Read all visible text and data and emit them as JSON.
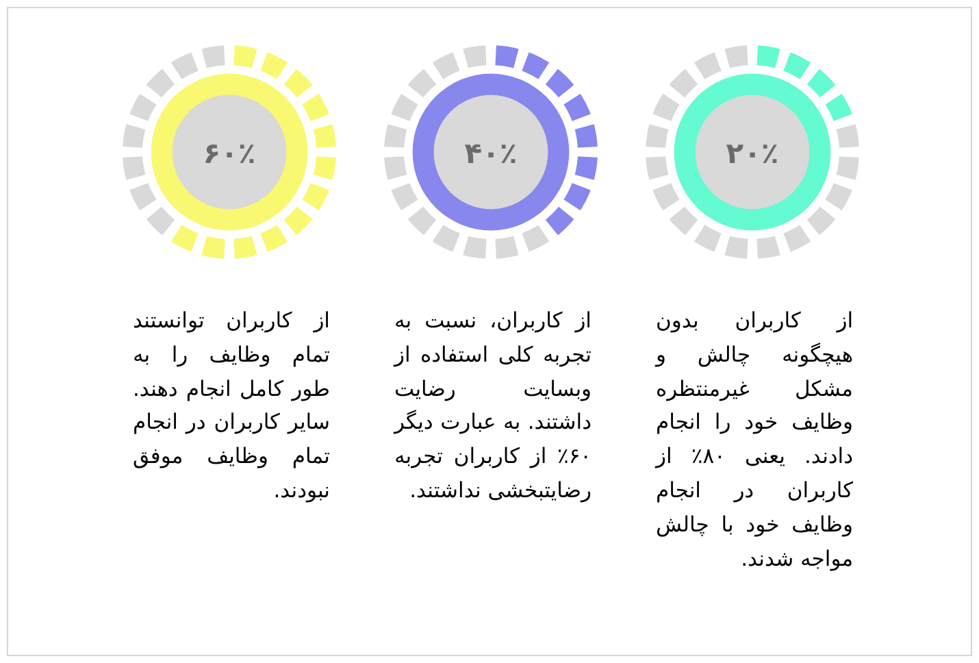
{
  "chart_data": [
    {
      "type": "donut",
      "categories": [
        null,
        null
      ],
      "values": [
        20,
        80
      ],
      "colors": [
        "#64fad2",
        "#d9d9d9"
      ],
      "annotations": [
        "۲۰٪",
        "از کاربران بدون هیچگونه چالش و مشکل غیرمنتظره وظایف خود را انجام دادند. یعنی ۸۰٪ از کاربران در انجام وظایف خود با چالش مواجه شدند."
      ]
    },
    {
      "type": "donut",
      "categories": [
        null,
        null
      ],
      "values": [
        40,
        60
      ],
      "colors": [
        "#8787ee",
        "#d9d9d9"
      ],
      "annotations": [
        "۴۰٪",
        "از کاربران، نسبت به تجربه کلی استفاده از وبسایت رضایت داشتند. به عبارت دیگر ۶۰٪ از کاربران تجربه رضایتبخشی نداشتند."
      ]
    },
    {
      "type": "donut",
      "categories": [
        null,
        null
      ],
      "values": [
        60,
        40
      ],
      "colors": [
        "#f9f871",
        "#d9d9d9"
      ],
      "annotations": [
        "۶۰٪",
        "از کاربران توانستند تمام وظایف را به طور کامل انجام دهند. سایر کاربران در انجام تمام وظایف موفق نبودند."
      ]
    }
  ]
}
